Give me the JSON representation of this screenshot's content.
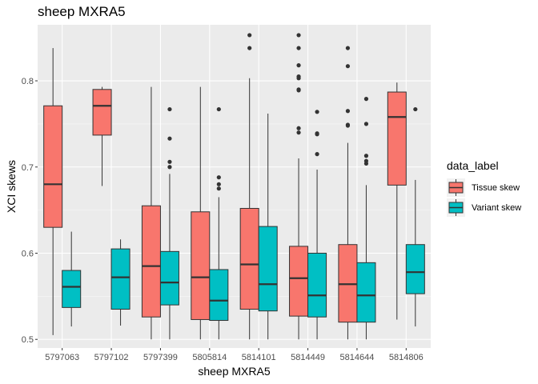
{
  "chart_data": {
    "type": "boxplot",
    "title": "sheep MXRA5",
    "xlabel": "sheep MXRA5",
    "ylabel": "XCI skews",
    "ylim": [
      0.49,
      0.865
    ],
    "yticks": [
      0.5,
      0.6,
      0.7,
      0.8
    ],
    "ytick_labels": [
      "0.5",
      "0.6",
      "0.7",
      "0.8"
    ],
    "grid": true,
    "legend": {
      "title": "data_label",
      "placement": "right",
      "entries": [
        "Tissue skew",
        "Variant skew"
      ]
    },
    "categories": [
      "5797063",
      "5797102",
      "5797399",
      "5805814",
      "5814101",
      "5814449",
      "5814644",
      "5814806"
    ],
    "series": [
      {
        "name": "Tissue skew",
        "color": "#F8766D",
        "boxes": [
          {
            "min": 0.505,
            "q1": 0.63,
            "median": 0.68,
            "q3": 0.771,
            "max": 0.838,
            "outliers": []
          },
          {
            "min": 0.678,
            "q1": 0.737,
            "median": 0.771,
            "q3": 0.79,
            "max": 0.793,
            "outliers": []
          },
          {
            "min": 0.5,
            "q1": 0.526,
            "median": 0.585,
            "q3": 0.655,
            "max": 0.793,
            "outliers": []
          },
          {
            "min": 0.5,
            "q1": 0.523,
            "median": 0.572,
            "q3": 0.648,
            "max": 0.793,
            "outliers": []
          },
          {
            "min": 0.5,
            "q1": 0.535,
            "median": 0.587,
            "q3": 0.652,
            "max": 0.803,
            "outliers": [
              0.838,
              0.853
            ]
          },
          {
            "min": 0.5,
            "q1": 0.527,
            "median": 0.571,
            "q3": 0.608,
            "max": 0.71,
            "outliers": [
              0.74,
              0.745,
              0.789,
              0.79,
              0.803,
              0.805,
              0.818,
              0.838,
              0.853
            ]
          },
          {
            "min": 0.5,
            "q1": 0.52,
            "median": 0.564,
            "q3": 0.61,
            "max": 0.728,
            "outliers": [
              0.748,
              0.749,
              0.765,
              0.817,
              0.838
            ]
          },
          {
            "min": 0.523,
            "q1": 0.679,
            "median": 0.758,
            "q3": 0.787,
            "max": 0.798,
            "outliers": []
          }
        ]
      },
      {
        "name": "Variant skew",
        "color": "#00BFC4",
        "boxes": [
          {
            "min": 0.515,
            "q1": 0.537,
            "median": 0.561,
            "q3": 0.58,
            "max": 0.625,
            "outliers": []
          },
          {
            "min": 0.516,
            "q1": 0.535,
            "median": 0.572,
            "q3": 0.605,
            "max": 0.616,
            "outliers": []
          },
          {
            "min": 0.5,
            "q1": 0.54,
            "median": 0.566,
            "q3": 0.602,
            "max": 0.692,
            "outliers": [
              0.7,
              0.706,
              0.733,
              0.767
            ]
          },
          {
            "min": 0.5,
            "q1": 0.522,
            "median": 0.545,
            "q3": 0.581,
            "max": 0.665,
            "outliers": [
              0.675,
              0.68,
              0.688,
              0.767
            ]
          },
          {
            "min": 0.5,
            "q1": 0.533,
            "median": 0.564,
            "q3": 0.631,
            "max": 0.762,
            "outliers": []
          },
          {
            "min": 0.5,
            "q1": 0.526,
            "median": 0.551,
            "q3": 0.6,
            "max": 0.697,
            "outliers": [
              0.715,
              0.738,
              0.739,
              0.764
            ]
          },
          {
            "min": 0.5,
            "q1": 0.52,
            "median": 0.551,
            "q3": 0.589,
            "max": 0.679,
            "outliers": [
              0.704,
              0.707,
              0.713,
              0.75,
              0.779
            ]
          },
          {
            "min": 0.515,
            "q1": 0.553,
            "median": 0.578,
            "q3": 0.61,
            "max": 0.685,
            "outliers": [
              0.767
            ]
          }
        ]
      }
    ]
  }
}
